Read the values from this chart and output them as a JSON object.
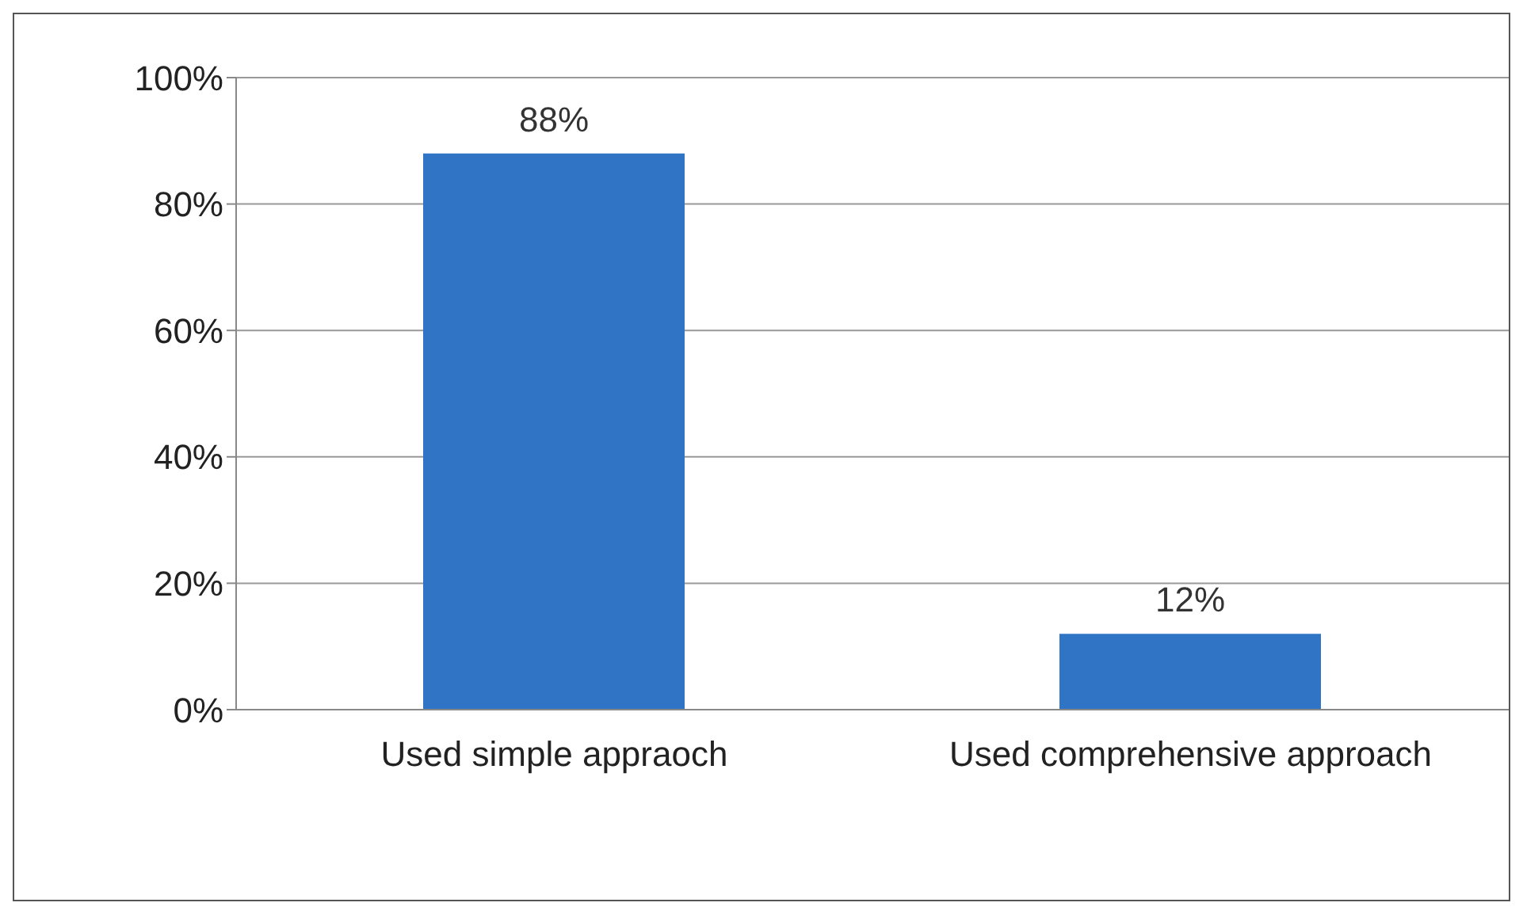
{
  "chart_data": {
    "type": "bar",
    "categories": [
      "Used simple appraoch",
      "Used comprehensive approach"
    ],
    "values": [
      88,
      12
    ],
    "value_labels": [
      "88%",
      "12%"
    ],
    "color": "#2f74c5",
    "ylim": [
      0,
      100
    ],
    "yticks": [
      {
        "value": 0,
        "label": "0%"
      },
      {
        "value": 20,
        "label": "20%"
      },
      {
        "value": 40,
        "label": "40%"
      },
      {
        "value": 60,
        "label": "60%"
      },
      {
        "value": 80,
        "label": "80%"
      },
      {
        "value": 100,
        "label": "100%"
      }
    ],
    "grid": "y"
  }
}
